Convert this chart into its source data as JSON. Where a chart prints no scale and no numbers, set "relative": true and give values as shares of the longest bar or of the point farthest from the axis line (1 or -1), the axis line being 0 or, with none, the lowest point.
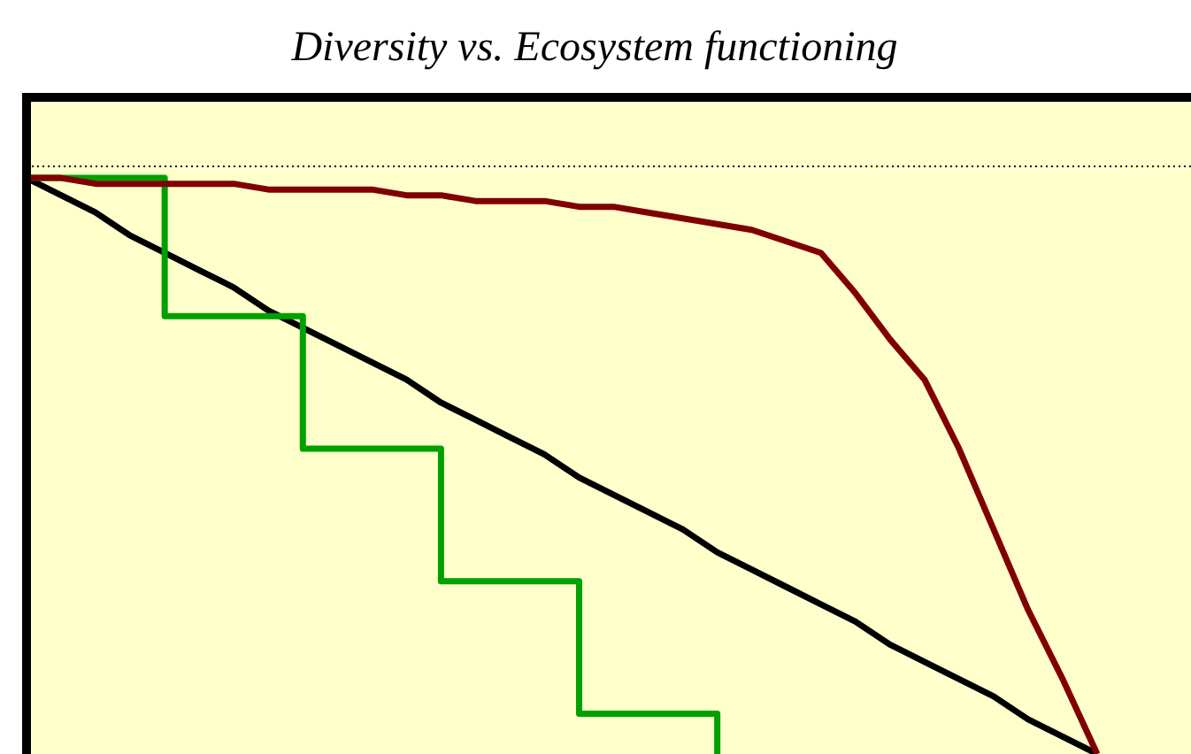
{
  "chart_data": {
    "type": "line",
    "title": "Diversity vs. Ecosystem functioning",
    "relative": true,
    "tick_labels": false,
    "categories": [
      null,
      null,
      null,
      null,
      null,
      null,
      null,
      null,
      null,
      null,
      null,
      null,
      null,
      null,
      null,
      null,
      null,
      null,
      null,
      null,
      null,
      null,
      null,
      null,
      null,
      null,
      null,
      null,
      null,
      null,
      null,
      null
    ],
    "series": [
      {
        "type": "line",
        "color": "#000000",
        "values": [
          1,
          0.97,
          0.94,
          0.9,
          0.87,
          0.84,
          0.81,
          0.77,
          0.74,
          0.71,
          0.68,
          0.65,
          0.61,
          0.58,
          0.55,
          0.52,
          0.48,
          0.45,
          0.42,
          0.39,
          0.35,
          0.32,
          0.29,
          0.26,
          0.23,
          0.19,
          0.16,
          0.13,
          0.1,
          0.06,
          0.03,
          0
        ]
      },
      {
        "type": "step",
        "color": "#00a000",
        "values": [
          1,
          1,
          1,
          1,
          0.76,
          0.76,
          0.76,
          0.76,
          0.53,
          0.53,
          0.53,
          0.53,
          0.3,
          0.3,
          0.3,
          0.3,
          0.07,
          0.07,
          0.07,
          0.07,
          0,
          null,
          null,
          null,
          null,
          null,
          null,
          null,
          null,
          null,
          null,
          null
        ]
      },
      {
        "type": "line",
        "color": "#800000",
        "values": [
          1,
          1,
          0.99,
          0.99,
          0.99,
          0.99,
          0.99,
          0.98,
          0.98,
          0.98,
          0.98,
          0.97,
          0.97,
          0.96,
          0.96,
          0.96,
          0.95,
          0.95,
          0.94,
          0.93,
          0.92,
          0.91,
          0.89,
          0.87,
          0.8,
          0.72,
          0.65,
          0.53,
          0.39,
          0.25,
          0.13,
          0
        ]
      }
    ],
    "ref_lines": [
      {
        "axis": "y",
        "value": 1.02,
        "color": "#000000",
        "line_style": "dotted"
      }
    ]
  }
}
